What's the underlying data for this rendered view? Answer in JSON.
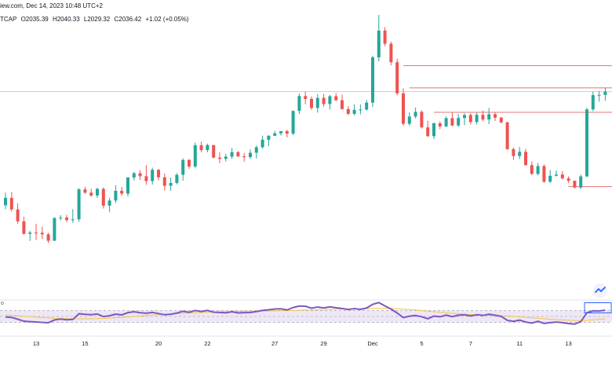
{
  "header": {
    "source_line": "iew.com, Dec 14, 2023 10:48 UTC+2",
    "symbol_fragment": "TCAP",
    "open": "O2035.39",
    "high": "H2040.33",
    "low": "L2029.32",
    "close": "C2036.42",
    "change": "+1.02 (+0.05%)"
  },
  "indicator_label": "o",
  "colors": {
    "up": "#26a69a",
    "down": "#ef5350",
    "hline": "#e57373",
    "last_price_line": "#9fd7d2",
    "rsi_line": "#7e57c2",
    "rsi_ma": "#f5c542",
    "rsi_band": "#ede7f6",
    "highlight_box": "#2962ff",
    "watermark": "#2962ff"
  },
  "chart_data": {
    "type": "candlestick",
    "x_tick_labels": [
      "13",
      "15",
      "20",
      "22",
      "27",
      "29",
      "Dec",
      "5",
      "7",
      "11",
      "13"
    ],
    "ylim": [
      1966,
      2148
    ],
    "candles": [
      [
        2023.0,
        2031.0,
        2020.5,
        2027.7
      ],
      [
        2027.7,
        2031.4,
        2018.9,
        2020.3
      ],
      [
        2020.3,
        2024.2,
        2011.2,
        2012.7
      ],
      [
        2012.7,
        2015.6,
        2004.3,
        2004.7
      ],
      [
        2004.7,
        2006.7,
        2000.2,
        2005.5
      ],
      [
        2005.5,
        2011.1,
        2000.8,
        2005.4
      ],
      [
        2005.4,
        2009.3,
        2001.4,
        2004.4
      ],
      [
        2004.4,
        2005.4,
        1998.9,
        2000.3
      ],
      [
        2000.3,
        2015.3,
        2000.2,
        2014.8
      ],
      [
        2014.8,
        2016.6,
        2013.3,
        2015.1
      ],
      [
        2015.1,
        2016.8,
        2012.2,
        2013.5
      ],
      [
        2013.5,
        2020.5,
        2011.8,
        2014.0
      ],
      [
        2014.0,
        2033.9,
        2012.4,
        2033.1
      ],
      [
        2033.1,
        2034.8,
        2030.2,
        2031.0
      ],
      [
        2031.0,
        2033.5,
        2028.4,
        2029.2
      ],
      [
        2029.2,
        2034.2,
        2027.7,
        2033.4
      ],
      [
        2033.4,
        2034.4,
        2020.9,
        2022.7
      ],
      [
        2022.7,
        2027.8,
        2018.5,
        2026.0
      ],
      [
        2026.0,
        2035.8,
        2024.3,
        2032.2
      ],
      [
        2032.2,
        2034.7,
        2029.0,
        2030.4
      ],
      [
        2030.4,
        2040.8,
        2028.6,
        2040.7
      ],
      [
        2040.7,
        2044.3,
        2038.8,
        2043.4
      ],
      [
        2043.4,
        2045.4,
        2039.1,
        2041.5
      ],
      [
        2041.5,
        2048.6,
        2036.0,
        2038.4
      ],
      [
        2038.4,
        2047.0,
        2036.2,
        2045.6
      ],
      [
        2045.6,
        2046.1,
        2038.8,
        2040.8
      ],
      [
        2040.8,
        2043.2,
        2032.3,
        2035.4
      ],
      [
        2035.4,
        2040.6,
        2032.2,
        2037.2
      ],
      [
        2037.2,
        2043.5,
        2036.3,
        2042.4
      ],
      [
        2042.4,
        2052.9,
        2038.7,
        2051.9
      ],
      [
        2051.9,
        2052.4,
        2046.3,
        2047.7
      ],
      [
        2047.7,
        2063.0,
        2046.7,
        2061.3
      ],
      [
        2061.3,
        2063.6,
        2056.8,
        2058.2
      ],
      [
        2058.2,
        2062.3,
        2056.7,
        2061.4
      ],
      [
        2061.4,
        2061.4,
        2052.9,
        2053.4
      ],
      [
        2053.4,
        2056.8,
        2049.8,
        2052.6
      ],
      [
        2052.6,
        2055.8,
        2050.9,
        2054.0
      ],
      [
        2054.0,
        2059.6,
        2052.5,
        2056.9
      ],
      [
        2056.9,
        2057.5,
        2053.7,
        2054.2
      ],
      [
        2054.2,
        2056.4,
        2050.8,
        2053.7
      ],
      [
        2053.7,
        2058.6,
        2052.6,
        2056.5
      ],
      [
        2056.5,
        2061.1,
        2052.8,
        2060.0
      ],
      [
        2060.0,
        2067.4,
        2059.2,
        2064.8
      ],
      [
        2064.8,
        2067.8,
        2060.8,
        2067.3
      ],
      [
        2067.3,
        2070.5,
        2067.1,
        2068.9
      ],
      [
        2068.9,
        2070.3,
        2067.5,
        2070.3
      ],
      [
        2070.3,
        2071.2,
        2066.3,
        2068.7
      ],
      [
        2068.7,
        2083.4,
        2067.7,
        2083.2
      ],
      [
        2083.2,
        2094.4,
        2081.2,
        2092.7
      ],
      [
        2092.7,
        2095.5,
        2087.4,
        2090.9
      ],
      [
        2090.9,
        2092.5,
        2083.8,
        2085.1
      ],
      [
        2085.1,
        2093.9,
        2082.1,
        2091.5
      ],
      [
        2091.5,
        2094.1,
        2085.9,
        2087.6
      ],
      [
        2087.6,
        2093.4,
        2084.1,
        2092.6
      ],
      [
        2092.6,
        2094.6,
        2089.6,
        2090.0
      ],
      [
        2090.0,
        2093.6,
        2084.1,
        2084.4
      ],
      [
        2084.4,
        2086.2,
        2080.5,
        2081.3
      ],
      [
        2081.3,
        2087.4,
        2080.2,
        2083.9
      ],
      [
        2083.9,
        2087.3,
        2081.0,
        2084.1
      ],
      [
        2084.1,
        2090.3,
        2083.3,
        2088.5
      ],
      [
        2088.5,
        2118.4,
        2085.7,
        2117.4
      ],
      [
        2117.4,
        2144.5,
        2114.8,
        2134.5
      ],
      [
        2134.5,
        2136.7,
        2124.5,
        2126.1
      ],
      [
        2126.1,
        2127.5,
        2112.3,
        2114.3
      ],
      [
        2114.3,
        2116.6,
        2093.1,
        2094.4
      ],
      [
        2094.4,
        2097.6,
        2073.6,
        2075.0
      ],
      [
        2075.0,
        2082.3,
        2073.7,
        2079.6
      ],
      [
        2079.6,
        2085.4,
        2078.4,
        2082.6
      ],
      [
        2082.6,
        2083.5,
        2072.0,
        2072.7
      ],
      [
        2072.7,
        2076.9,
        2066.6,
        2067.1
      ],
      [
        2067.1,
        2075.8,
        2065.1,
        2075.3
      ],
      [
        2075.3,
        2076.5,
        2071.6,
        2073.3
      ],
      [
        2073.3,
        2079.7,
        2072.8,
        2078.6
      ],
      [
        2078.6,
        2082.1,
        2073.4,
        2073.9
      ],
      [
        2073.9,
        2081.2,
        2073.0,
        2078.7
      ],
      [
        2078.7,
        2081.6,
        2074.1,
        2080.6
      ],
      [
        2080.6,
        2081.7,
        2074.6,
        2076.1
      ],
      [
        2076.1,
        2082.1,
        2074.6,
        2080.7
      ],
      [
        2080.7,
        2083.4,
        2076.5,
        2077.7
      ],
      [
        2077.7,
        2085.1,
        2074.8,
        2081.1
      ],
      [
        2081.1,
        2082.2,
        2076.8,
        2078.9
      ],
      [
        2078.9,
        2079.3,
        2075.1,
        2075.9
      ],
      [
        2075.9,
        2076.2,
        2058.3,
        2058.8
      ],
      [
        2058.8,
        2059.8,
        2051.8,
        2054.4
      ],
      [
        2054.4,
        2060.2,
        2052.4,
        2057.1
      ],
      [
        2057.1,
        2059.0,
        2048.2,
        2048.6
      ],
      [
        2048.6,
        2050.9,
        2042.3,
        2043.0
      ],
      [
        2043.0,
        2050.0,
        2042.0,
        2048.0
      ],
      [
        2048.0,
        2049.0,
        2037.3,
        2038.0
      ],
      [
        2038.0,
        2045.5,
        2037.2,
        2041.8
      ],
      [
        2041.8,
        2045.1,
        2041.3,
        2042.6
      ],
      [
        2042.6,
        2044.7,
        2039.4,
        2040.1
      ],
      [
        2040.1,
        2041.4,
        2037.2,
        2038.6
      ],
      [
        2038.6,
        2038.6,
        2033.7,
        2034.3
      ],
      [
        2034.3,
        2042.6,
        2033.3,
        2041.4
      ],
      [
        2041.4,
        2085.1,
        2040.9,
        2084.2
      ],
      [
        2084.2,
        2095.6,
        2083.1,
        2093.3
      ],
      [
        2093.3,
        2096.0,
        2089.1,
        2093.4
      ],
      [
        2093.4,
        2098.2,
        2089.6,
        2095.5
      ]
    ],
    "horizontal_levels": [
      2112.1,
      2097.9,
      2082.3,
      2034.9
    ],
    "last_price": 2095.5,
    "rsi": {
      "band": [
        30,
        70
      ],
      "midline": 50,
      "values": [
        48.3,
        46.8,
        40.8,
        34.1,
        32.5,
        31.6,
        30.1,
        29.1,
        38.4,
        41.4,
        38.7,
        40.0,
        59.0,
        57.1,
        55.9,
        58.3,
        49.7,
        52.4,
        57.7,
        55.4,
        62.8,
        65.7,
        62.5,
        60.9,
        63.5,
        59.7,
        55.6,
        57.5,
        61.2,
        67.5,
        63.8,
        70.1,
        66.7,
        70.2,
        64.3,
        63.6,
        62.1,
        65.8,
        62.0,
        62.8,
        63.1,
        66.5,
        70.4,
        72.5,
        75.1,
        75.5,
        71.7,
        80.0,
        84.9,
        84.1,
        77.7,
        81.7,
        78.8,
        82.3,
        79.4,
        76.7,
        73.3,
        76.3,
        73.7,
        78.2,
        90.7,
        96.5,
        85.3,
        74.7,
        61.5,
        46.2,
        50.9,
        53.4,
        49.2,
        42.3,
        51.2,
        48.9,
        54.5,
        49.3,
        54.3,
        55.7,
        51.7,
        55.8,
        53.5,
        57.6,
        54.2,
        50.2,
        36.9,
        33.6,
        37.6,
        31.4,
        27.8,
        33.9,
        26.8,
        29.3,
        31.4,
        29.2,
        26.3,
        24.3,
        32.8,
        62.2,
        69.0,
        68.5,
        71.0
      ],
      "ma": [
        55,
        53.6,
        52.2,
        50.8,
        49.4,
        48,
        46.6,
        45.1,
        44,
        43.2,
        42.6,
        42.2,
        42,
        42,
        42.3,
        42.8,
        43.5,
        44.5,
        45.7,
        47,
        48.5,
        50.1,
        51.7,
        53.2,
        54.6,
        56,
        57.3,
        58.5,
        59.6,
        60.6,
        61.6,
        62.5,
        63.3,
        64.1,
        64.8,
        65.4,
        65.9,
        66.4,
        66.8,
        67.1,
        67.4,
        67.7,
        68,
        68.4,
        68.8,
        69.3,
        69.8,
        70.4,
        71,
        71.6,
        72.2,
        72.8,
        73.4,
        74,
        74.5,
        75,
        75.4,
        75.8,
        76.1,
        76.4,
        76.9,
        77.4,
        77.3,
        76.9,
        76.1,
        74.8,
        73.3,
        71.6,
        69.8,
        67.8,
        65.9,
        64,
        62.2,
        60.5,
        58.9,
        57.5,
        56.3,
        55.3,
        54.5,
        53.9,
        53.3,
        52.6,
        51.5,
        50.2,
        48.8,
        47.2,
        45.6,
        44,
        42.4,
        40.9,
        39.6,
        38.4,
        37.4,
        36.5,
        36.2,
        37.2,
        38.7,
        40.4,
        42.2
      ]
    }
  }
}
